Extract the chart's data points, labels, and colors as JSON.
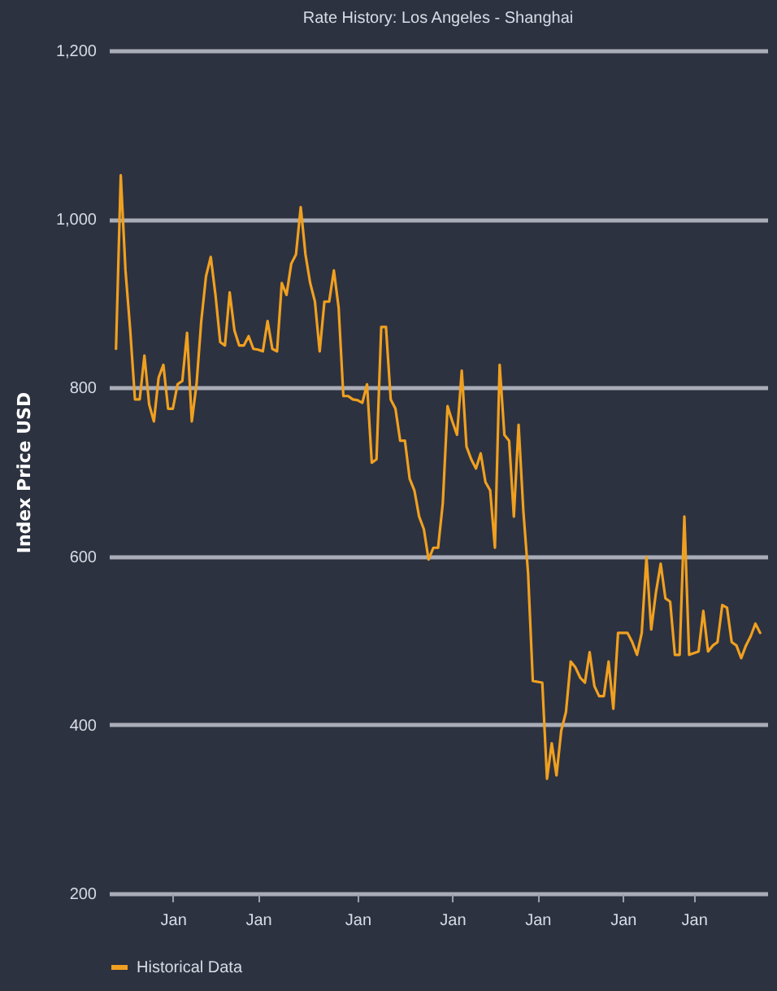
{
  "chart_data": {
    "type": "line",
    "title": "Rate History: Los Angeles - Shanghai",
    "ylabel": "Index Price USD",
    "ylim": [
      200,
      1200
    ],
    "yticks": [
      200,
      400,
      600,
      800,
      {
        "value": 1000,
        "label": "1,000"
      },
      {
        "value": 1200,
        "label": "1,200"
      }
    ],
    "grid": "y",
    "legend": "bottom",
    "categories": [
      null,
      null,
      null,
      null,
      null,
      null,
      null,
      null,
      null,
      null,
      null,
      null,
      "Jan",
      null,
      null,
      null,
      null,
      null,
      null,
      null,
      null,
      null,
      null,
      null,
      null,
      null,
      null,
      null,
      null,
      null,
      "Jan",
      null,
      null,
      null,
      null,
      null,
      null,
      null,
      null,
      null,
      null,
      null,
      null,
      null,
      null,
      null,
      null,
      null,
      null,
      null,
      null,
      "Jan",
      null,
      null,
      null,
      null,
      null,
      null,
      null,
      null,
      null,
      null,
      null,
      null,
      null,
      null,
      null,
      null,
      null,
      null,
      null,
      "Jan",
      null,
      null,
      null,
      null,
      null,
      null,
      null,
      null,
      null,
      null,
      null,
      null,
      null,
      null,
      null,
      null,
      null,
      "Jan",
      null,
      null,
      null,
      null,
      null,
      null,
      null,
      null,
      null,
      null,
      null,
      null,
      null,
      null,
      null,
      null,
      null,
      "Jan",
      null,
      null,
      null,
      null,
      null,
      null,
      null,
      null,
      null,
      null,
      null,
      null,
      null,
      null,
      "Jan",
      null,
      null,
      null,
      null,
      null,
      null,
      null,
      null,
      null,
      null,
      null,
      null,
      null,
      null
    ],
    "series": [
      {
        "name": "Historical Data",
        "color": "#f0a020",
        "values": [
          846,
          1052,
          939,
          868,
          786,
          786,
          838,
          780,
          760,
          812,
          827,
          775,
          775,
          804,
          808,
          865,
          760,
          804,
          879,
          932,
          955,
          910,
          854,
          850,
          913,
          868,
          850,
          850,
          861,
          846,
          845,
          843,
          879,
          846,
          843,
          924,
          910,
          947,
          958,
          1014,
          958,
          924,
          902,
          843,
          902,
          902,
          939,
          895,
          790,
          790,
          786,
          785,
          782,
          804,
          711,
          715,
          872,
          872,
          786,
          775,
          737,
          737,
          692,
          678,
          647,
          632,
          596,
          610,
          610,
          663,
          778,
          760,
          744,
          820,
          730,
          715,
          704,
          722,
          688,
          678,
          610,
          827,
          744,
          737,
          647,
          756,
          654,
          580,
          452,
          451,
          450,
          336,
          378,
          340,
          393,
          415,
          475,
          468,
          456,
          450,
          486,
          446,
          434,
          434,
          475,
          419,
          509,
          509,
          509,
          498,
          483,
          509,
          599,
          513,
          557,
          591,
          550,
          546,
          483,
          483,
          647,
          483,
          485,
          487,
          535,
          487,
          494,
          498,
          542,
          539,
          498,
          494,
          479,
          494,
          505,
          520,
          509
        ]
      }
    ]
  }
}
